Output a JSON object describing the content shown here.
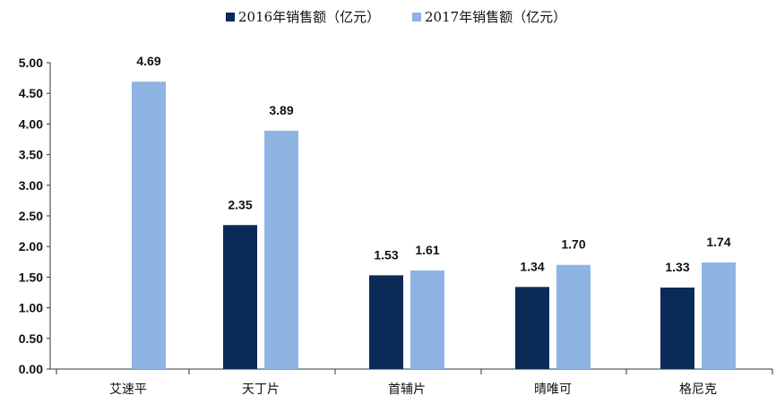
{
  "chart_data": {
    "type": "bar",
    "title": "",
    "xlabel": "",
    "ylabel": "",
    "categories": [
      "艾速平",
      "天丁片",
      "首辅片",
      "晴唯可",
      "格尼克"
    ],
    "series": [
      {
        "name": "2016年销售额（亿元）",
        "values": [
          null,
          2.35,
          1.53,
          1.34,
          1.33
        ],
        "labels": [
          "",
          "2.35",
          "1.53",
          "1.34",
          "1.33"
        ],
        "color": "#0b2a57"
      },
      {
        "name": "2017年销售额（亿元）",
        "values": [
          4.69,
          3.89,
          1.61,
          1.7,
          1.74
        ],
        "labels": [
          "4.69",
          "3.89",
          "1.61",
          "1.70",
          "1.74"
        ],
        "color": "#8eb4e3"
      }
    ],
    "ylim": [
      0,
      5
    ],
    "yticks": [
      "0.00",
      "0.50",
      "1.00",
      "1.50",
      "2.00",
      "2.50",
      "3.00",
      "3.50",
      "4.00",
      "4.50",
      "5.00"
    ],
    "ytick_values": [
      0,
      0.5,
      1,
      1.5,
      2,
      2.5,
      3,
      3.5,
      4,
      4.5,
      5
    ],
    "grid": false,
    "legend": "top-center",
    "axis_color": "#333333",
    "text_color": "#111111"
  }
}
